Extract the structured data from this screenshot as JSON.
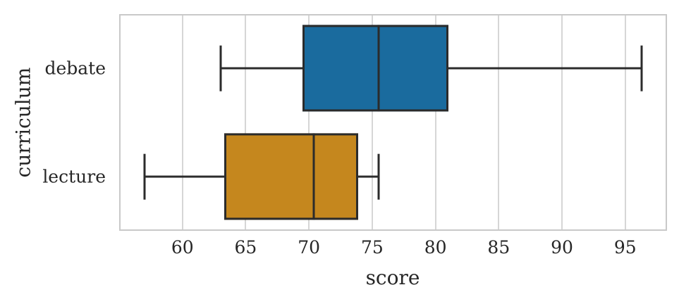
{
  "chart_data": {
    "type": "boxplot",
    "orientation": "horizontal",
    "title": "",
    "xlabel": "score",
    "ylabel": "curriculum",
    "categories": [
      "debate",
      "lecture"
    ],
    "xticks": [
      60,
      65,
      70,
      75,
      80,
      85,
      90,
      95
    ],
    "xlim": [
      55.0,
      98.3
    ],
    "grid": "vertical-only",
    "legend": "none",
    "series": [
      {
        "name": "debate",
        "whisker_low": 63.0,
        "q1": 69.5,
        "median": 75.5,
        "q3": 81.0,
        "whisker_high": 96.3,
        "fill_color": "#1A6B9E"
      },
      {
        "name": "lecture",
        "whisker_low": 57.0,
        "q1": 63.3,
        "median": 70.4,
        "q3": 73.9,
        "whisker_high": 75.5,
        "fill_color": "#C5871E"
      }
    ],
    "colors": {
      "edge": "#2B2B2B",
      "grid": "#D6D6D6",
      "frame": "#C9C9C9",
      "text": "#262626",
      "background": "#FFFFFF"
    }
  }
}
